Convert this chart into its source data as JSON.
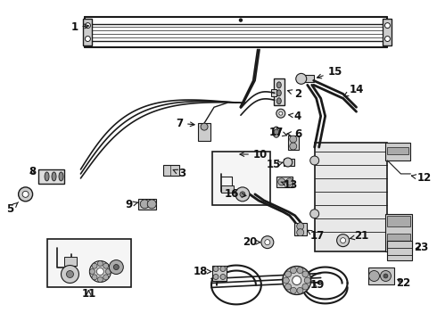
{
  "bg_color": "#ffffff",
  "line_color": "#1a1a1a",
  "label_color": "#111111",
  "label_fontsize": 8.5,
  "fig_width": 4.9,
  "fig_height": 3.6,
  "dpi": 100
}
